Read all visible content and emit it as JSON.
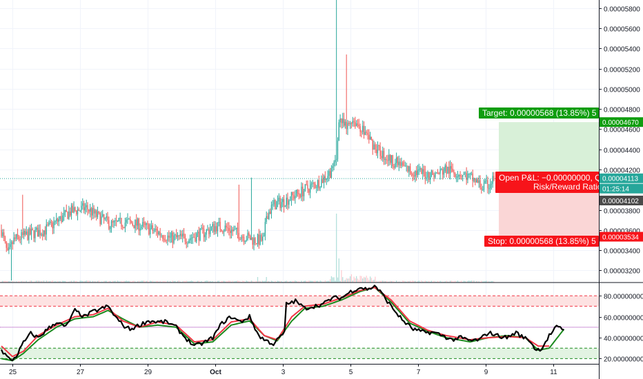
{
  "chart_data": [
    {
      "type": "candlestick",
      "title": "",
      "x_ticks": [
        "25",
        "27",
        "29",
        "Oct",
        "3",
        "5",
        "7",
        "9",
        "11"
      ],
      "y_ticks": [
        "0.00005800",
        "0.00005600",
        "0.00005400",
        "0.00005200",
        "0.00005000",
        "0.00004800",
        "0.00004600",
        "0.00004400",
        "0.00004200",
        "0.00004000",
        "0.00003800",
        "0.00003600",
        "0.00003400",
        "0.00003200"
      ],
      "ylim": [
        3.08e-05,
        5.88e-05
      ],
      "grid": true,
      "colors": {
        "up": "#26a69a",
        "down": "#ef5350",
        "volume_up": "#b2dfdb",
        "volume_down": "#ffcdd2"
      },
      "close_path_anchors": [
        [
          0,
          3.6e-05
        ],
        [
          5,
          3.35e-05
        ],
        [
          10,
          3.5e-05
        ],
        [
          20,
          3.55e-05
        ],
        [
          35,
          3.6e-05
        ],
        [
          55,
          3.78e-05
        ],
        [
          68,
          3.82e-05
        ],
        [
          75,
          3.75e-05
        ],
        [
          88,
          3.65e-05
        ],
        [
          100,
          3.68e-05
        ],
        [
          110,
          3.65e-05
        ],
        [
          125,
          3.58e-05
        ],
        [
          135,
          3.52e-05
        ],
        [
          150,
          3.52e-05
        ],
        [
          163,
          3.58e-05
        ],
        [
          172,
          3.64e-05
        ],
        [
          180,
          3.62e-05
        ],
        [
          190,
          3.56e-05
        ],
        [
          202,
          3.5e-05
        ],
        [
          210,
          3.5e-05
        ],
        [
          212,
          3.75e-05
        ],
        [
          218,
          3.85e-05
        ],
        [
          225,
          3.88e-05
        ],
        [
          240,
          3.98e-05
        ],
        [
          255,
          4.08e-05
        ],
        [
          265,
          4.2e-05
        ],
        [
          268,
          4.3e-05
        ],
        [
          270,
          4.72e-05
        ],
        [
          273,
          4.65e-05
        ],
        [
          276,
          4.6e-05
        ],
        [
          280,
          4.7e-05
        ],
        [
          285,
          4.65e-05
        ],
        [
          292,
          4.55e-05
        ],
        [
          300,
          4.4e-05
        ],
        [
          308,
          4.32e-05
        ],
        [
          318,
          4.25e-05
        ],
        [
          328,
          4.18e-05
        ],
        [
          338,
          4.16e-05
        ],
        [
          348,
          4.15e-05
        ],
        [
          355,
          4.2e-05
        ],
        [
          362,
          4.18e-05
        ],
        [
          370,
          4.15e-05
        ],
        [
          378,
          4.1e-05
        ],
        [
          385,
          4.02e-05
        ],
        [
          390,
          4.05e-05
        ],
        [
          394,
          4.11e-05
        ]
      ],
      "candle_count": 395,
      "last_price": "0.00004113",
      "last_price_secondary": "0.00004102",
      "countdown": "01:25:14",
      "target_price": "0.00004670",
      "stop_price": "0.00003534",
      "entry_price": 4.11e-05,
      "dotted_line_price": 4.11e-05
    },
    {
      "type": "line",
      "title": "",
      "y_ticks": [
        "80.00000000",
        "60.00000000",
        "40.00000000",
        "20.00000000"
      ],
      "ylim": [
        15,
        92
      ],
      "overbought_band": [
        70,
        80
      ],
      "oversold_band": [
        20,
        30
      ],
      "midline": 50,
      "series": [
        {
          "color": "#000000",
          "anchors": [
            [
              0,
              28
            ],
            [
              5,
              18
            ],
            [
              8,
              22
            ],
            [
              12,
              35
            ],
            [
              16,
              44
            ],
            [
              20,
              40
            ],
            [
              25,
              48
            ],
            [
              30,
              55
            ],
            [
              35,
              50
            ],
            [
              40,
              66
            ],
            [
              45,
              60
            ],
            [
              50,
              65
            ],
            [
              55,
              68
            ],
            [
              58,
              70
            ],
            [
              62,
              60
            ],
            [
              66,
              52
            ],
            [
              70,
              48
            ],
            [
              75,
              52
            ],
            [
              80,
              56
            ],
            [
              85,
              55
            ],
            [
              90,
              55
            ],
            [
              95,
              50
            ],
            [
              100,
              40
            ],
            [
              105,
              32
            ],
            [
              110,
              35
            ],
            [
              115,
              40
            ],
            [
              120,
              54
            ],
            [
              125,
              60
            ],
            [
              130,
              55
            ],
            [
              135,
              60
            ],
            [
              140,
              42
            ],
            [
              143,
              38
            ],
            [
              148,
              34
            ],
            [
              154,
              45
            ],
            [
              155,
              72
            ],
            [
              160,
              75
            ],
            [
              165,
              68
            ],
            [
              170,
              70
            ],
            [
              175,
              72
            ],
            [
              180,
              78
            ],
            [
              185,
              78
            ],
            [
              190,
              84
            ],
            [
              195,
              88
            ],
            [
              200,
              86
            ],
            [
              203,
              90
            ],
            [
              207,
              82
            ],
            [
              212,
              70
            ],
            [
              218,
              57
            ],
            [
              224,
              48
            ],
            [
              230,
              45
            ],
            [
              235,
              45
            ],
            [
              240,
              42
            ],
            [
              245,
              38
            ],
            [
              250,
              40
            ],
            [
              255,
              37
            ],
            [
              260,
              38
            ],
            [
              265,
              45
            ],
            [
              270,
              42
            ],
            [
              275,
              40
            ],
            [
              280,
              45
            ],
            [
              283,
              41
            ],
            [
              287,
              38
            ],
            [
              291,
              28
            ],
            [
              294,
              30
            ],
            [
              298,
              42
            ],
            [
              302,
              50
            ],
            [
              306,
              48
            ]
          ]
        },
        {
          "color": "#f23645",
          "anchors": [
            [
              0,
              32
            ],
            [
              6,
              22
            ],
            [
              12,
              27
            ],
            [
              20,
              42
            ],
            [
              30,
              52
            ],
            [
              40,
              60
            ],
            [
              50,
              62
            ],
            [
              58,
              68
            ],
            [
              66,
              56
            ],
            [
              75,
              50
            ],
            [
              85,
              55
            ],
            [
              95,
              52
            ],
            [
              105,
              36
            ],
            [
              115,
              38
            ],
            [
              125,
              55
            ],
            [
              135,
              58
            ],
            [
              143,
              42
            ],
            [
              150,
              38
            ],
            [
              158,
              60
            ],
            [
              165,
              70
            ],
            [
              175,
              72
            ],
            [
              185,
              78
            ],
            [
              195,
              85
            ],
            [
              203,
              88
            ],
            [
              212,
              76
            ],
            [
              222,
              56
            ],
            [
              232,
              47
            ],
            [
              242,
              42
            ],
            [
              255,
              38
            ],
            [
              265,
              40
            ],
            [
              275,
              41
            ],
            [
              285,
              40
            ],
            [
              292,
              32
            ],
            [
              298,
              32
            ]
          ]
        },
        {
          "color": "#1b8a1e",
          "anchors": [
            [
              0,
              20
            ],
            [
              6,
              18
            ],
            [
              12,
              25
            ],
            [
              20,
              38
            ],
            [
              30,
              50
            ],
            [
              40,
              58
            ],
            [
              50,
              60
            ],
            [
              58,
              66
            ],
            [
              66,
              58
            ],
            [
              75,
              50
            ],
            [
              85,
              52
            ],
            [
              95,
              50
            ],
            [
              105,
              34
            ],
            [
              115,
              36
            ],
            [
              125,
              52
            ],
            [
              135,
              56
            ],
            [
              143,
              42
            ],
            [
              150,
              37
            ],
            [
              158,
              56
            ],
            [
              165,
              68
            ],
            [
              175,
              70
            ],
            [
              185,
              76
            ],
            [
              195,
              84
            ],
            [
              203,
              88
            ],
            [
              212,
              74
            ],
            [
              222,
              54
            ],
            [
              232,
              46
            ],
            [
              242,
              40
            ],
            [
              255,
              36
            ],
            [
              265,
              40
            ],
            [
              275,
              42
            ],
            [
              285,
              40
            ],
            [
              292,
              28
            ],
            [
              298,
              30
            ],
            [
              306,
              48
            ]
          ]
        }
      ]
    }
  ],
  "position": {
    "target_label": "Target: 0.00000568 (13.85%) 5",
    "stop_label": "Stop: 0.00000568 (13.85%) 5",
    "pnl_label": "Open P&L: −0.00000000, Q",
    "rr_label": "Risk/Reward Ratio"
  }
}
